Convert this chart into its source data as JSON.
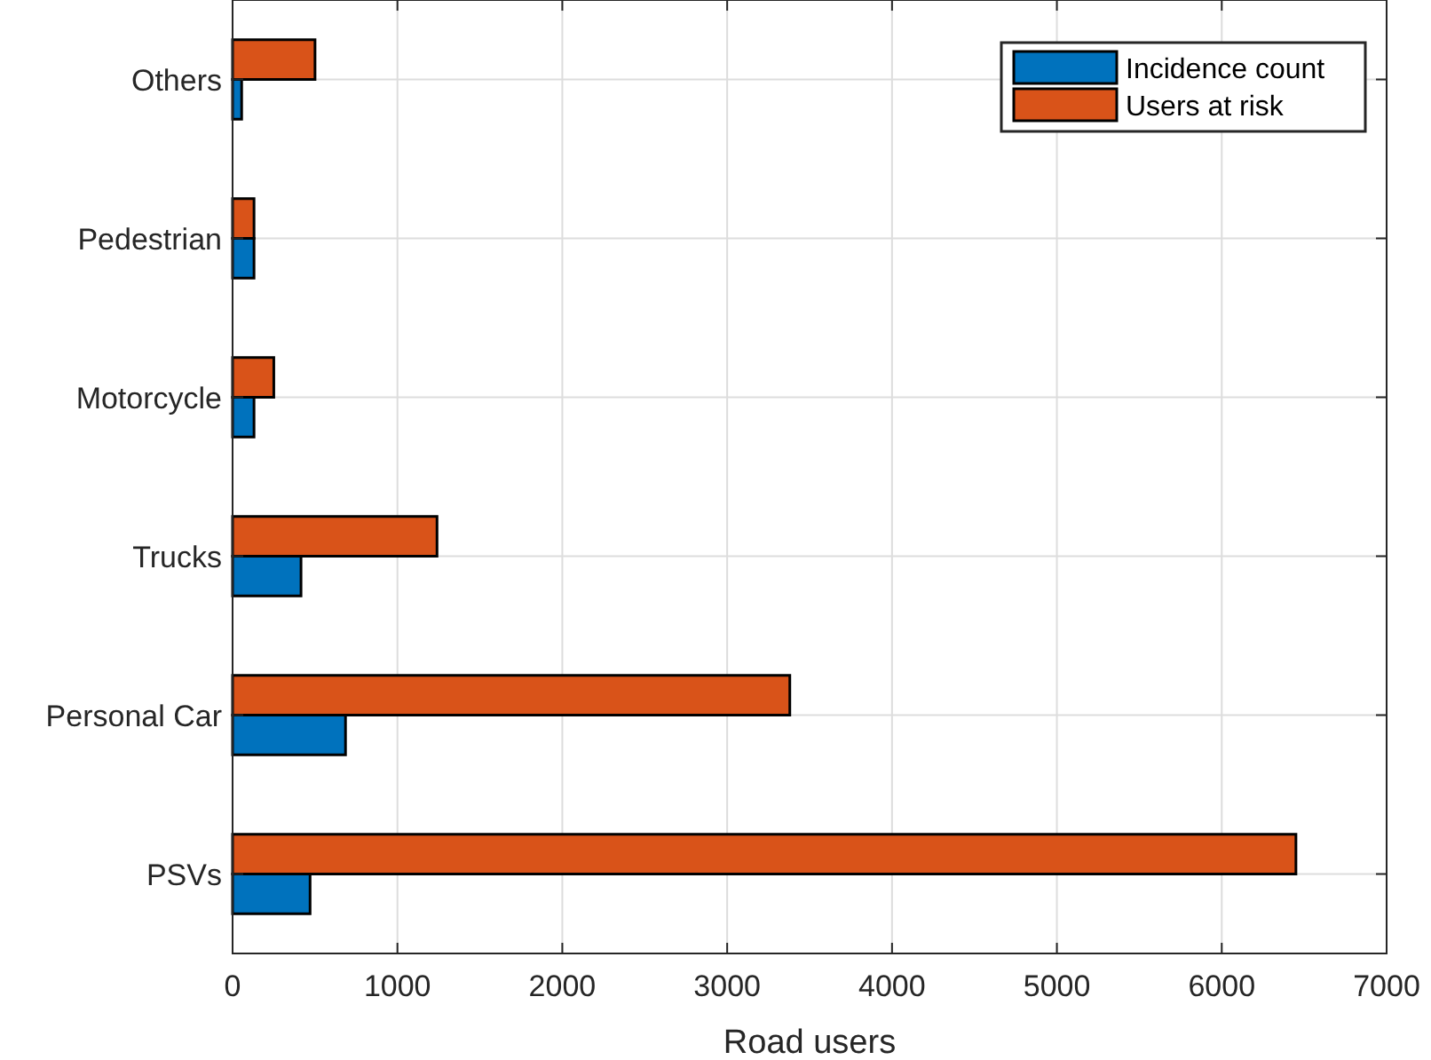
{
  "chart_data": {
    "type": "bar",
    "orientation": "horizontal",
    "xlabel": "Road users",
    "categories": [
      "Others",
      "Pedestrian",
      "Motorcycle",
      "Trucks",
      "Personal Car",
      "PSVs"
    ],
    "series": [
      {
        "name": "Incidence count",
        "color": "#0072bd",
        "values": [
          55,
          130,
          130,
          415,
          685,
          470
        ]
      },
      {
        "name": "Users at risk",
        "color": "#d95319",
        "values": [
          500,
          130,
          250,
          1240,
          3380,
          6450
        ]
      }
    ],
    "xlim": [
      0,
      7000
    ],
    "xticks": [
      0,
      1000,
      2000,
      3000,
      4000,
      5000,
      6000,
      7000
    ],
    "grid": true,
    "legend": "top right"
  }
}
